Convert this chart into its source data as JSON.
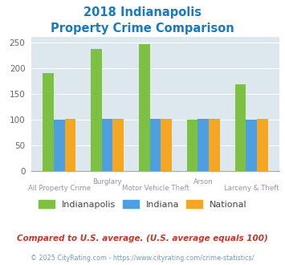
{
  "title_line1": "2018 Indianapolis",
  "title_line2": "Property Crime Comparison",
  "title_color": "#1a7abf",
  "indianapolis": [
    190,
    237,
    247,
    100,
    168
  ],
  "indiana": [
    100,
    101,
    101,
    101,
    100
  ],
  "national": [
    101,
    101,
    101,
    101,
    101
  ],
  "bar_colors": {
    "indianapolis": "#7dc143",
    "indiana": "#4d9fdf",
    "national": "#f5a623"
  },
  "ylim": [
    0,
    260
  ],
  "yticks": [
    0,
    50,
    100,
    150,
    200,
    250
  ],
  "plot_bg_color": "#dce8ee",
  "grid_color": "#ffffff",
  "footnote1": "Compared to U.S. average. (U.S. average equals 100)",
  "footnote2": "© 2025 CityRating.com - https://www.cityrating.com/crime-statistics/",
  "footnote1_color": "#c0392b",
  "footnote2_color": "#7a9ab0",
  "legend_labels": [
    "Indianapolis",
    "Indiana",
    "National"
  ],
  "label_color": "#a090a8",
  "top_labels": [
    "",
    "Burglary",
    "",
    "Arson",
    ""
  ],
  "bottom_labels": [
    "All Property Crime",
    "",
    "Motor Vehicle Theft",
    "",
    "Larceny & Theft"
  ]
}
